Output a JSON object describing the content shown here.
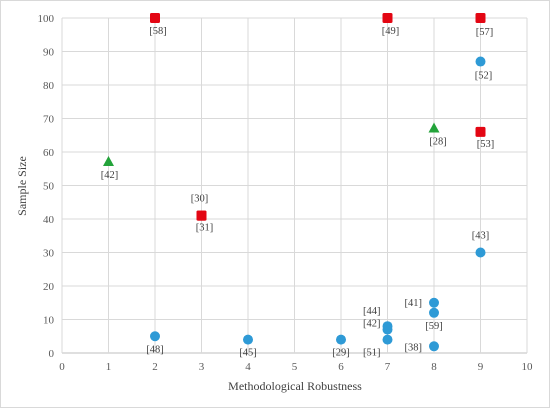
{
  "chart_data": {
    "type": "scatter",
    "xlabel": "Methodological Robustness",
    "ylabel": "Sample Size",
    "xlim": [
      0,
      10
    ],
    "ylim": [
      0,
      100
    ],
    "xticks": [
      0,
      1,
      2,
      3,
      4,
      5,
      6,
      7,
      8,
      9,
      10
    ],
    "yticks": [
      0,
      10,
      20,
      30,
      40,
      50,
      60,
      70,
      80,
      90,
      100
    ],
    "grid": "vertical-and-horizontal",
    "colors": {
      "circle": "#2e9ad6",
      "square": "#e30613",
      "triangle": "#23a33a"
    },
    "series": [
      {
        "marker": "circle",
        "points": [
          {
            "x": 2,
            "y": 5,
            "label": "[48]"
          },
          {
            "x": 4,
            "y": 4,
            "label": "[45]"
          },
          {
            "x": 6,
            "y": 4,
            "label": "[29]"
          },
          {
            "x": 7,
            "y": 8,
            "label": "[44]"
          },
          {
            "x": 7,
            "y": 7,
            "label": "[42]"
          },
          {
            "x": 7,
            "y": 4,
            "label": "[51]"
          },
          {
            "x": 8,
            "y": 15,
            "label": "[41]"
          },
          {
            "x": 8,
            "y": 12,
            "label": "[59]"
          },
          {
            "x": 8,
            "y": 2,
            "label": "[38]"
          },
          {
            "x": 9,
            "y": 30,
            "label": "[43]"
          },
          {
            "x": 9,
            "y": 87,
            "label": "[52]"
          }
        ]
      },
      {
        "marker": "square",
        "points": [
          {
            "x": 2,
            "y": 100,
            "label": "[58]"
          },
          {
            "x": 7,
            "y": 100,
            "label": "[49]"
          },
          {
            "x": 9,
            "y": 100,
            "label": "[57]"
          },
          {
            "x": 9,
            "y": 66,
            "label": "[53]"
          },
          {
            "x": 3,
            "y": 41,
            "label": "[30]"
          },
          {
            "x": 3,
            "y": 41,
            "label": "[31]"
          }
        ]
      },
      {
        "marker": "triangle",
        "points": [
          {
            "x": 1,
            "y": 57,
            "label": "[42]"
          },
          {
            "x": 8,
            "y": 67,
            "label": "[28]"
          }
        ]
      }
    ]
  }
}
